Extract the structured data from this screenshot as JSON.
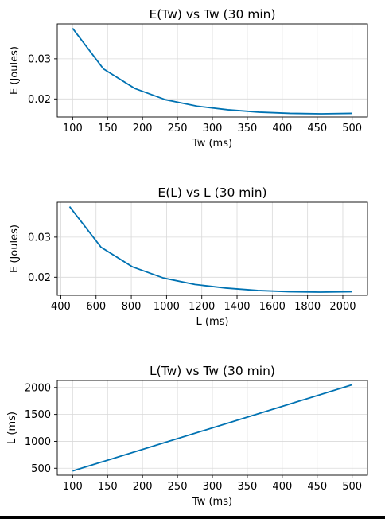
{
  "chart_data": [
    {
      "type": "line",
      "title": "E(Tw) vs Tw (30 min)",
      "xlabel": "Tw (ms)",
      "ylabel": "E (Joules)",
      "xlim": [
        78,
        522
      ],
      "ylim": [
        0.0155,
        0.0387
      ],
      "xticks": [
        100,
        150,
        200,
        250,
        300,
        350,
        400,
        450,
        500
      ],
      "yticks": [
        0.02,
        0.03
      ],
      "ytick_labels": [
        "0.02",
        "0.03"
      ],
      "grid": true,
      "series": [
        {
          "color": "#0072b2",
          "x": [
            100,
            144,
            189,
            233,
            278,
            322,
            367,
            411,
            456,
            500
          ],
          "y": [
            0.0376,
            0.0275,
            0.0226,
            0.0198,
            0.0182,
            0.0173,
            0.0167,
            0.0164,
            0.0163,
            0.0164
          ]
        }
      ]
    },
    {
      "type": "line",
      "title": "E(L) vs L (30 min)",
      "xlabel": "L (ms)",
      "ylabel": "E (Joules)",
      "xlim": [
        380,
        2140
      ],
      "ylim": [
        0.0155,
        0.0387
      ],
      "xticks": [
        400,
        600,
        800,
        1000,
        1200,
        1400,
        1600,
        1800,
        2000
      ],
      "yticks": [
        0.02,
        0.03
      ],
      "ytick_labels": [
        "0.02",
        "0.03"
      ],
      "grid": true,
      "series": [
        {
          "color": "#0072b2",
          "x": [
            450,
            628,
            806,
            983,
            1161,
            1339,
            1517,
            1694,
            1872,
            2050
          ],
          "y": [
            0.0376,
            0.0275,
            0.0226,
            0.0198,
            0.0182,
            0.0173,
            0.0167,
            0.0164,
            0.0163,
            0.0164
          ]
        }
      ]
    },
    {
      "type": "line",
      "title": "L(Tw) vs Tw (30 min)",
      "xlabel": "Tw (ms)",
      "ylabel": "L (ms)",
      "xlim": [
        78,
        522
      ],
      "ylim": [
        371,
        2130
      ],
      "xticks": [
        100,
        150,
        200,
        250,
        300,
        350,
        400,
        450,
        500
      ],
      "yticks": [
        500,
        1000,
        1500,
        2000
      ],
      "ytick_labels": [
        "500",
        "1000",
        "1500",
        "2000"
      ],
      "grid": true,
      "series": [
        {
          "color": "#0072b2",
          "x": [
            100,
            500
          ],
          "y": [
            450,
            2050
          ]
        }
      ]
    }
  ]
}
